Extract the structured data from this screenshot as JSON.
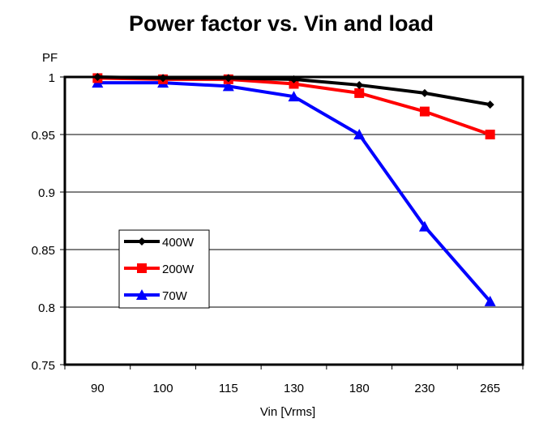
{
  "chart_data": {
    "type": "line",
    "title": "Power factor vs. Vin and load",
    "xlabel": "Vin [Vrms]",
    "ylabel": "PF",
    "categories": [
      "90",
      "100",
      "115",
      "130",
      "180",
      "230",
      "265"
    ],
    "ylim": [
      0.75,
      1
    ],
    "yticks": [
      "0.75",
      "0.8",
      "0.85",
      "0.9",
      "0.95",
      "1"
    ],
    "grid": true,
    "legend": "inside-lower-left",
    "series": [
      {
        "name": "400W",
        "color": "#000000",
        "marker": "diamond",
        "values": [
          1.0,
          0.999,
          0.999,
          0.998,
          0.993,
          0.986,
          0.976
        ]
      },
      {
        "name": "200W",
        "color": "#ff0000",
        "marker": "square",
        "values": [
          0.999,
          0.998,
          0.998,
          0.994,
          0.986,
          0.97,
          0.95
        ]
      },
      {
        "name": "70W",
        "color": "#0000ff",
        "marker": "triangle",
        "values": [
          0.995,
          0.995,
          0.992,
          0.983,
          0.95,
          0.87,
          0.805
        ]
      }
    ]
  }
}
